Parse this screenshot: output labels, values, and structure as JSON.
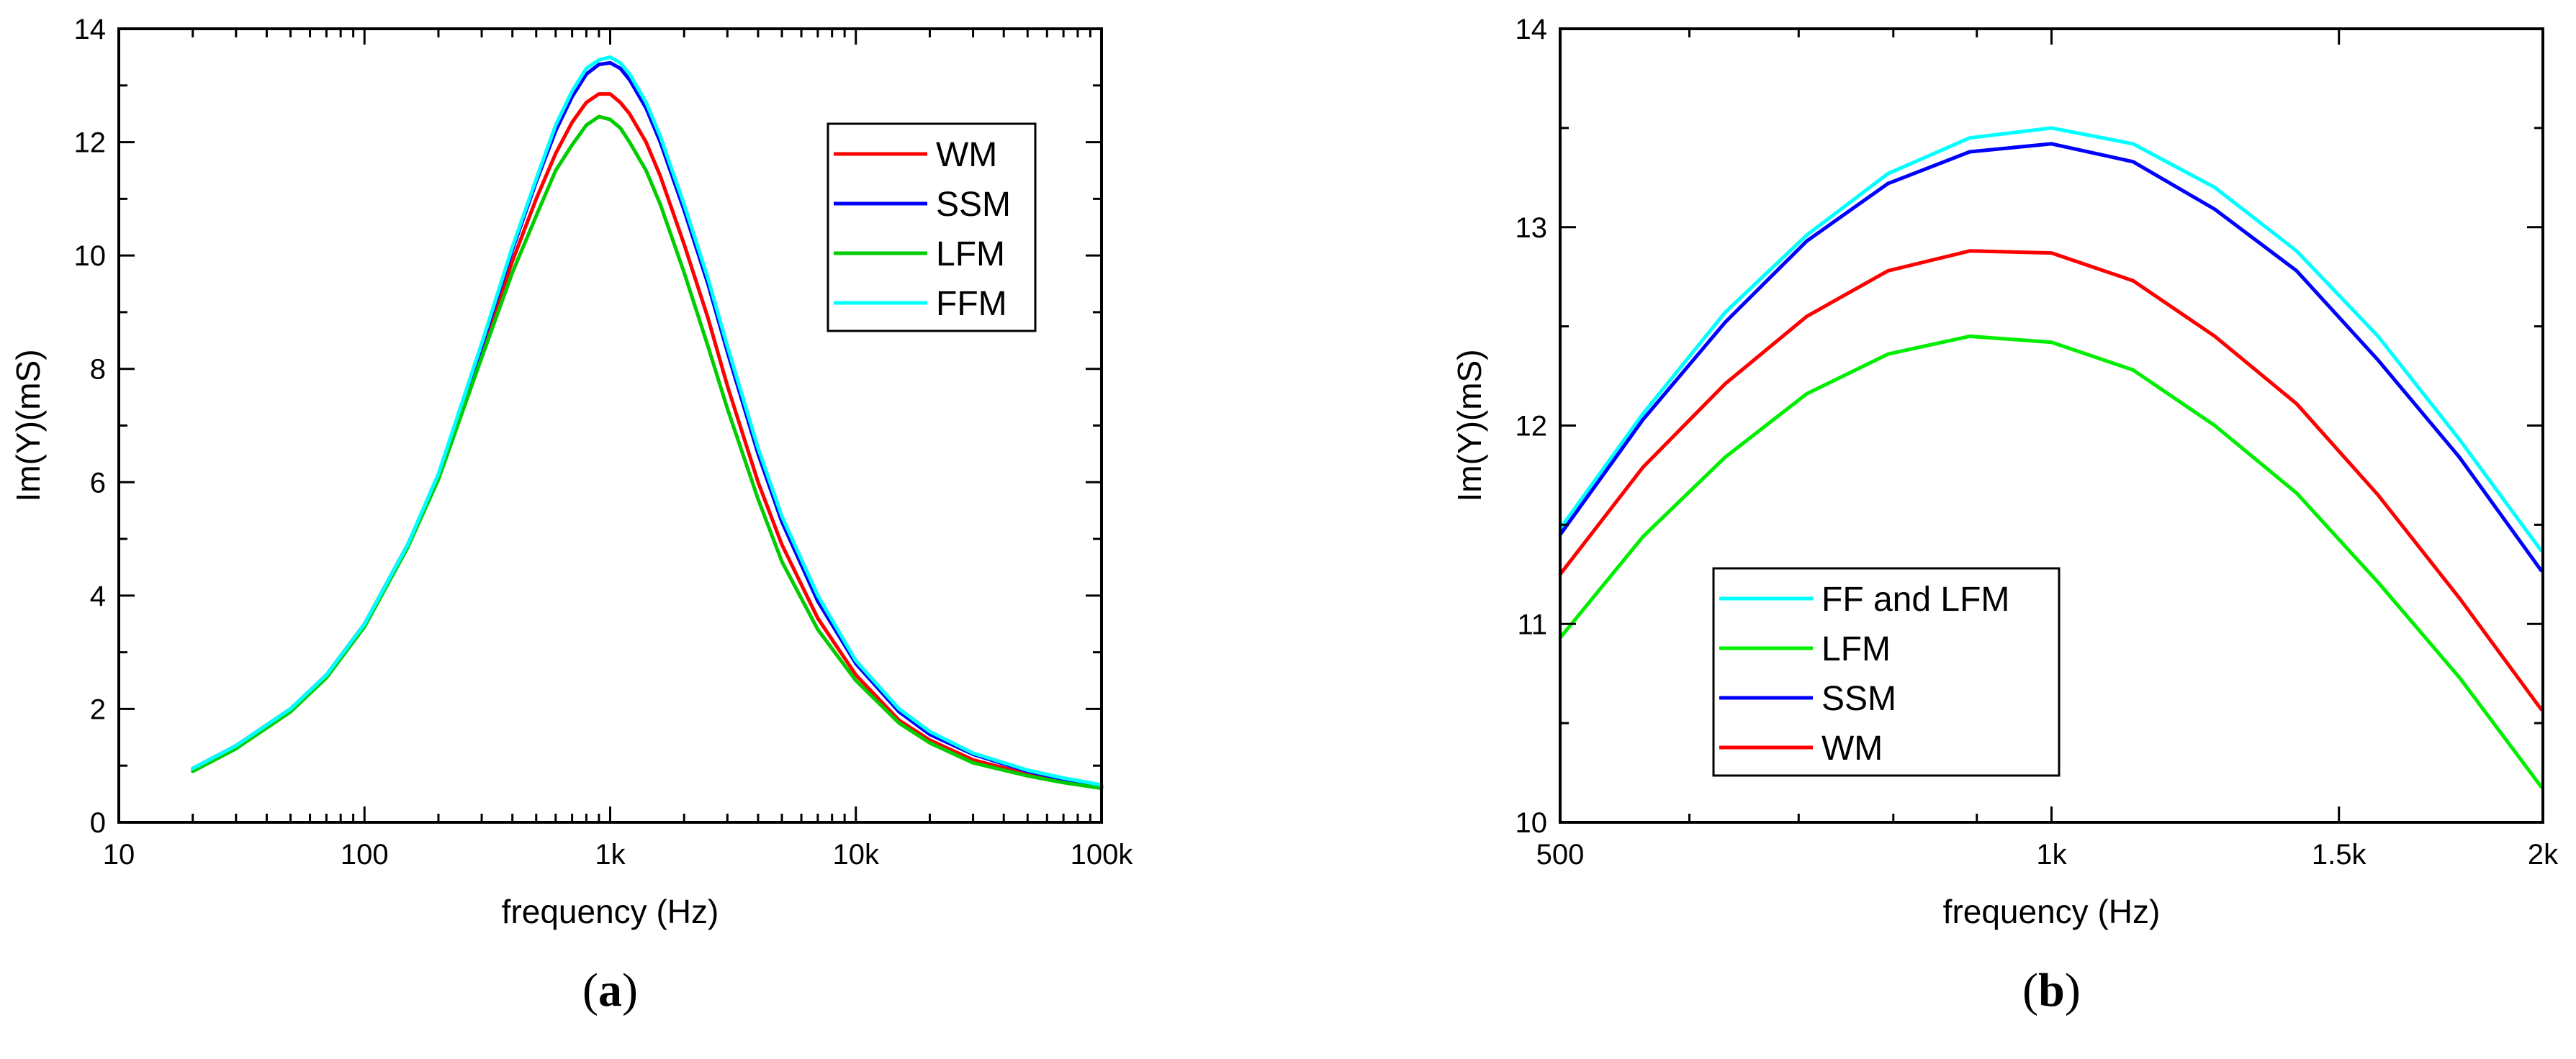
{
  "panels": [
    {
      "caption_open": "(",
      "caption_letter": "a",
      "caption_close": ")",
      "xlabel": "frequency (Hz)",
      "ylabel": "Im(Y)(mS)",
      "x_ticks": [
        {
          "value": 10,
          "label": "10"
        },
        {
          "value": 100,
          "label": "100"
        },
        {
          "value": 1000,
          "label": "1k"
        },
        {
          "value": 10000,
          "label": "10k"
        },
        {
          "value": 100000,
          "label": "100k"
        }
      ],
      "y_ticks": [
        {
          "value": 0,
          "label": "0"
        },
        {
          "value": 2,
          "label": "2"
        },
        {
          "value": 4,
          "label": "4"
        },
        {
          "value": 6,
          "label": "6"
        },
        {
          "value": 8,
          "label": "8"
        },
        {
          "value": 10,
          "label": "10"
        },
        {
          "value": 12,
          "label": "12"
        },
        {
          "value": 14,
          "label": "14"
        }
      ]
    },
    {
      "caption_open": "(",
      "caption_letter": "b",
      "caption_close": ")",
      "xlabel": "frequency (Hz)",
      "ylabel": "Im(Y)(mS)",
      "x_ticks": [
        {
          "value": 500,
          "label": "500"
        },
        {
          "value": 1000,
          "label": "1k"
        },
        {
          "value": 1500,
          "label": "1.5k"
        },
        {
          "value": 2000,
          "label": "2k"
        }
      ],
      "y_ticks": [
        {
          "value": 10,
          "label": "10"
        },
        {
          "value": 11,
          "label": "11"
        },
        {
          "value": 12,
          "label": "12"
        },
        {
          "value": 13,
          "label": "13"
        },
        {
          "value": 14,
          "label": "14"
        }
      ]
    }
  ],
  "chart_data": [
    {
      "type": "line",
      "xscale": "log",
      "title": "",
      "xlabel": "frequency (Hz)",
      "ylabel": "Im(Y)(mS)",
      "xlim": [
        10,
        100000
      ],
      "ylim": [
        0,
        14
      ],
      "legend_position": "top-right",
      "x": [
        20,
        30,
        50,
        70,
        100,
        150,
        200,
        300,
        400,
        500,
        600,
        700,
        800,
        900,
        1000,
        1100,
        1200,
        1400,
        1600,
        2000,
        2500,
        3000,
        4000,
        5000,
        7000,
        10000,
        15000,
        20000,
        30000,
        50000,
        70000,
        100000
      ],
      "series": [
        {
          "name": "WM",
          "color": "#ff0000",
          "values": [
            0.95,
            1.35,
            2.0,
            2.6,
            3.5,
            4.9,
            6.1,
            8.3,
            9.9,
            11.0,
            11.8,
            12.35,
            12.7,
            12.85,
            12.85,
            12.7,
            12.5,
            12.0,
            11.4,
            10.2,
            8.9,
            7.7,
            6.0,
            4.9,
            3.6,
            2.6,
            1.8,
            1.45,
            1.1,
            0.85,
            0.72,
            0.62
          ]
        },
        {
          "name": "SSM",
          "color": "#0000ff",
          "values": [
            0.95,
            1.35,
            2.0,
            2.6,
            3.5,
            4.9,
            6.1,
            8.4,
            10.1,
            11.3,
            12.2,
            12.8,
            13.2,
            13.37,
            13.4,
            13.3,
            13.1,
            12.6,
            12.0,
            10.8,
            9.5,
            8.3,
            6.5,
            5.3,
            3.9,
            2.8,
            1.95,
            1.55,
            1.2,
            0.9,
            0.76,
            0.65
          ]
        },
        {
          "name": "LFM",
          "color": "#00cc00",
          "values": [
            0.9,
            1.3,
            1.95,
            2.55,
            3.45,
            4.85,
            6.05,
            8.2,
            9.7,
            10.7,
            11.5,
            11.95,
            12.3,
            12.45,
            12.4,
            12.25,
            12.0,
            11.5,
            10.9,
            9.7,
            8.4,
            7.3,
            5.7,
            4.6,
            3.4,
            2.5,
            1.75,
            1.4,
            1.05,
            0.82,
            0.7,
            0.6
          ]
        },
        {
          "name": "FFM",
          "color": "#00ffff",
          "values": [
            0.95,
            1.35,
            2.0,
            2.6,
            3.5,
            4.9,
            6.15,
            8.45,
            10.15,
            11.35,
            12.3,
            12.9,
            13.3,
            13.45,
            13.5,
            13.4,
            13.2,
            12.7,
            12.1,
            10.9,
            9.6,
            8.4,
            6.6,
            5.4,
            4.0,
            2.85,
            2.0,
            1.6,
            1.22,
            0.92,
            0.78,
            0.66
          ]
        }
      ]
    },
    {
      "type": "line",
      "xscale": "log",
      "title": "",
      "xlabel": "frequency (Hz)",
      "ylabel": "Im(Y)(mS)",
      "xlim": [
        500,
        2000
      ],
      "ylim": [
        10,
        14
      ],
      "legend_position": "bottom-left",
      "x": [
        500,
        562,
        631,
        708,
        794,
        891,
        1000,
        1122,
        1259,
        1413,
        1585,
        1778,
        1995
      ],
      "series": [
        {
          "name": "FF and LFM",
          "color": "#00ffff",
          "values": [
            11.48,
            12.06,
            12.57,
            12.96,
            13.27,
            13.45,
            13.5,
            13.42,
            13.2,
            12.88,
            12.45,
            11.93,
            11.37
          ]
        },
        {
          "name": "LFM",
          "color": "#00ee00",
          "values": [
            10.93,
            11.44,
            11.84,
            12.16,
            12.36,
            12.45,
            12.42,
            12.28,
            12.0,
            11.66,
            11.21,
            10.73,
            10.18
          ]
        },
        {
          "name": "SSM",
          "color": "#0000ff",
          "values": [
            11.45,
            12.03,
            12.52,
            12.93,
            13.22,
            13.38,
            13.42,
            13.33,
            13.09,
            12.78,
            12.33,
            11.84,
            11.27
          ]
        },
        {
          "name": "WM",
          "color": "#ff0000",
          "values": [
            11.25,
            11.79,
            12.21,
            12.55,
            12.78,
            12.88,
            12.87,
            12.73,
            12.45,
            12.11,
            11.65,
            11.13,
            10.57
          ]
        }
      ]
    }
  ]
}
